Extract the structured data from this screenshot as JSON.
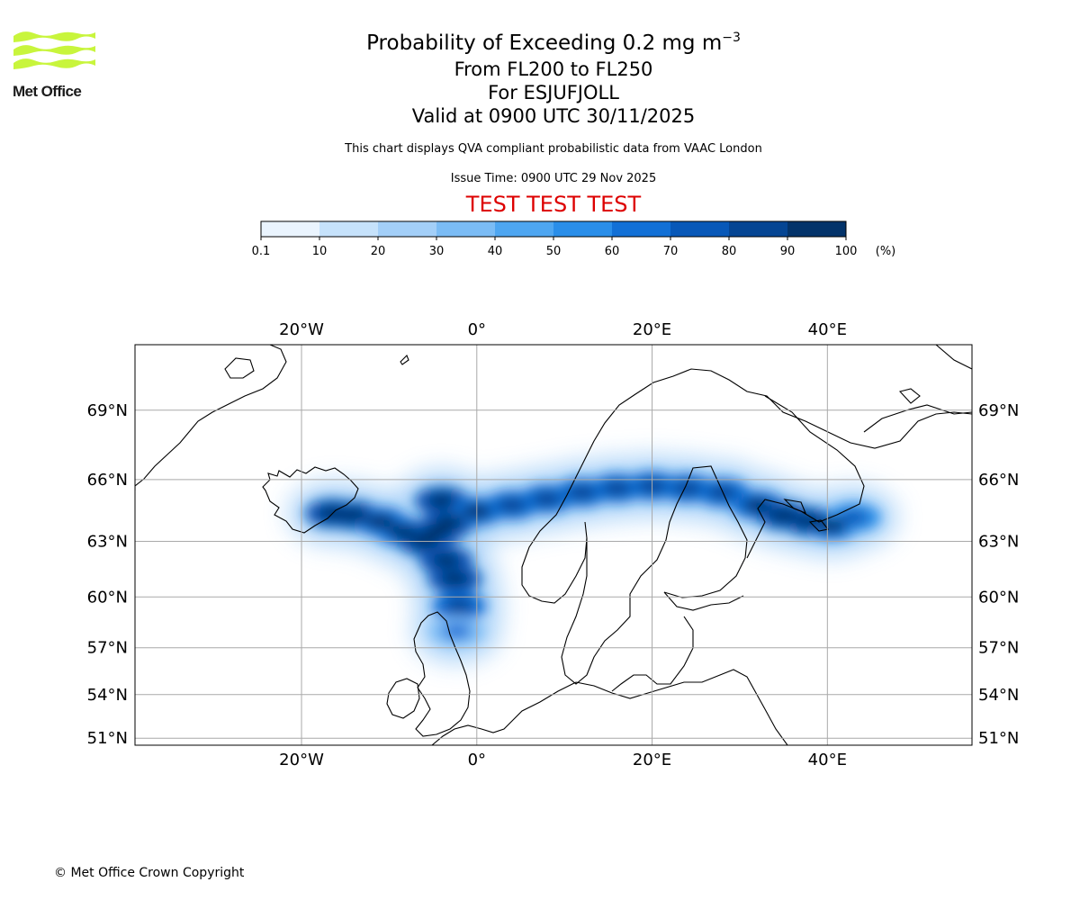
{
  "logo": {
    "text": "Met Office",
    "color": "#c8f53c"
  },
  "title": {
    "main_prefix": "Probability of Exceeding 0.2 mg m",
    "main_exponent": "−3",
    "level": "From FL200 to FL250",
    "volcano": "For ESJUFJOLL",
    "valid": "Valid at 0900 UTC 30/11/2025"
  },
  "description": "This chart displays QVA compliant probabilistic data from VAAC London",
  "issue_time": "Issue Time: 0900 UTC 29 Nov 2025",
  "test_banner": "TEST TEST TEST",
  "colorbar": {
    "ticks": [
      "0.1",
      "10",
      "20",
      "30",
      "40",
      "50",
      "60",
      "70",
      "80",
      "90",
      "100"
    ],
    "unit": "(%)",
    "colors": [
      "#eaf4fe",
      "#c6e2fb",
      "#a3cff8",
      "#7bbcf5",
      "#4ea6f1",
      "#2a8ee9",
      "#1270d6",
      "#0858b8",
      "#054593",
      "#03336a"
    ]
  },
  "map": {
    "lon_labels": [
      "20°W",
      "0°",
      "20°E",
      "40°E"
    ],
    "lon_values": [
      -20,
      0,
      20,
      40
    ],
    "lat_labels": [
      "69°N",
      "66°N",
      "63°N",
      "60°N",
      "57°N",
      "54°N",
      "51°N"
    ],
    "lat_values": [
      69,
      66,
      63,
      60,
      57,
      54,
      51
    ],
    "lon_range": [
      -39,
      56.5
    ],
    "lat_range": [
      50.5,
      71.5
    ],
    "grid_color": "#a9a9a9",
    "plume": [
      {
        "lon": -16.5,
        "lat": 64.4,
        "p": 100
      },
      {
        "lon": -14.0,
        "lat": 64.3,
        "p": 95
      },
      {
        "lon": -11.0,
        "lat": 64.0,
        "p": 92
      },
      {
        "lon": -8.5,
        "lat": 63.5,
        "p": 92
      },
      {
        "lon": -6.0,
        "lat": 63.0,
        "p": 95
      },
      {
        "lon": -4.5,
        "lat": 63.5,
        "p": 100
      },
      {
        "lon": -3.5,
        "lat": 62.0,
        "p": 100
      },
      {
        "lon": -2.5,
        "lat": 61.0,
        "p": 100
      },
      {
        "lon": -2.0,
        "lat": 59.5,
        "p": 85
      },
      {
        "lon": -2.3,
        "lat": 58.0,
        "p": 60
      },
      {
        "lon": -4.0,
        "lat": 65.0,
        "p": 100
      },
      {
        "lon": -3.0,
        "lat": 64.0,
        "p": 100
      },
      {
        "lon": 0.0,
        "lat": 64.5,
        "p": 90
      },
      {
        "lon": 4.0,
        "lat": 64.8,
        "p": 85
      },
      {
        "lon": 8.0,
        "lat": 65.1,
        "p": 85
      },
      {
        "lon": 12.0,
        "lat": 65.4,
        "p": 88
      },
      {
        "lon": 16.0,
        "lat": 65.6,
        "p": 88
      },
      {
        "lon": 20.0,
        "lat": 65.7,
        "p": 88
      },
      {
        "lon": 24.0,
        "lat": 65.6,
        "p": 88
      },
      {
        "lon": 28.0,
        "lat": 65.4,
        "p": 88
      },
      {
        "lon": 32.0,
        "lat": 64.8,
        "p": 90
      },
      {
        "lon": 35.0,
        "lat": 64.3,
        "p": 95
      },
      {
        "lon": 38.0,
        "lat": 64.0,
        "p": 100
      },
      {
        "lon": 40.5,
        "lat": 63.8,
        "p": 92
      },
      {
        "lon": 43.0,
        "lat": 64.2,
        "p": 75
      }
    ]
  },
  "copyright": "© Met Office Crown Copyright"
}
